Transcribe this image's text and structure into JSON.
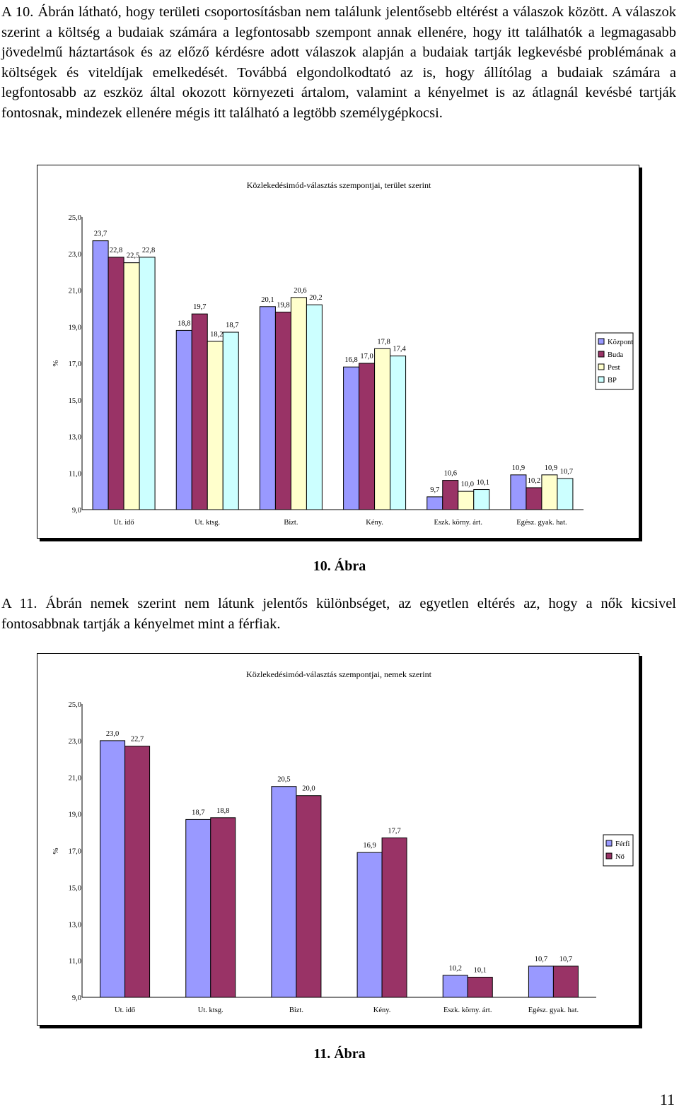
{
  "paragraphs": {
    "p1": "A 10. Ábrán látható, hogy területi csoportosításban nem találunk jelentősebb eltérést a válaszok között. A válaszok szerint a költség a budaiak számára a legfontosabb szempont annak ellenére, hogy itt találhatók a legmagasabb jövedelmű háztartások és az előző kérdésre adott válaszok alapján a budaiak tartják legkevésbé problémának a költségek és viteldíjak emelkedését. Továbbá elgondolkodtató az is, hogy állítólag a budaiak számára a legfontosabb az eszköz által okozott környezeti ártalom, valamint a kényelmet is az átlagnál kevésbé tartják fontosnak, mindezek ellenére mégis itt található a legtöbb személygépkocsi.",
    "p2": "A 11. Ábrán nemek szerint nem látunk jelentős különbséget, az egyetlen eltérés az, hogy a nők kicsivel fontosabbnak tartják a kényelmet mint a férfiak."
  },
  "captions": {
    "fig10": "10. Ábra",
    "fig11": "11. Ábra"
  },
  "page_number": "11",
  "chart_data": [
    {
      "type": "bar",
      "title": "Közlekedésimód-választás szempontjai, terület szerint",
      "xlabel": "",
      "ylabel": "%",
      "ylim": [
        9,
        25
      ],
      "yticks": [
        "9,0",
        "11,0",
        "13,0",
        "15,0",
        "17,0",
        "19,0",
        "21,0",
        "23,0",
        "25,0"
      ],
      "categories": [
        "Ut. idő",
        "Ut. ktsg.",
        "Bizt.",
        "Kény.",
        "Eszk. körny. árt.",
        "Egész. gyak. hat."
      ],
      "series": [
        {
          "name": "Központ",
          "color": "#9999ff",
          "values": [
            23.7,
            18.8,
            20.1,
            16.8,
            9.7,
            10.9
          ],
          "labels": [
            "23,7",
            "18,8",
            "20,1",
            "16,8",
            "9,7",
            "10,9"
          ]
        },
        {
          "name": "Buda",
          "color": "#993366",
          "values": [
            22.8,
            19.7,
            19.8,
            17.0,
            10.6,
            10.2
          ],
          "labels": [
            "22,8",
            "19,7",
            "19,8",
            "17,0",
            "10,6",
            "10,2"
          ]
        },
        {
          "name": "Pest",
          "color": "#ffffcc",
          "values": [
            22.5,
            18.2,
            20.6,
            17.8,
            10.0,
            10.9
          ],
          "labels": [
            "22,5",
            "18,2",
            "20,6",
            "17,8",
            "10,0",
            "10,9"
          ]
        },
        {
          "name": "BP",
          "color": "#ccffff",
          "values": [
            22.8,
            18.7,
            20.2,
            17.4,
            10.1,
            10.7
          ],
          "labels": [
            "22,8",
            "18,7",
            "20,2",
            "17,4",
            "10,1",
            "10,7"
          ]
        }
      ],
      "legend": "right",
      "grid": false
    },
    {
      "type": "bar",
      "title": "Közlekedésimód-választás szempontjai, nemek szerint",
      "xlabel": "",
      "ylabel": "%",
      "ylim": [
        9,
        25
      ],
      "yticks": [
        "9,0",
        "11,0",
        "13,0",
        "15,0",
        "17,0",
        "19,0",
        "21,0",
        "23,0",
        "25,0"
      ],
      "categories": [
        "Ut. idő",
        "Ut. ktsg.",
        "Bizt.",
        "Kény.",
        "Eszk. körny. árt.",
        "Egész. gyak. hat."
      ],
      "series": [
        {
          "name": "Férfi",
          "color": "#9999ff",
          "values": [
            23.0,
            18.7,
            20.5,
            16.9,
            10.2,
            10.7
          ],
          "labels": [
            "23,0",
            "18,7",
            "20,5",
            "16,9",
            "10,2",
            "10,7"
          ]
        },
        {
          "name": "Nő",
          "color": "#993366",
          "values": [
            22.7,
            18.8,
            20.0,
            17.7,
            10.1,
            10.7
          ],
          "labels": [
            "22,7",
            "18,8",
            "20,0",
            "17,7",
            "10,1",
            "10,7"
          ]
        }
      ],
      "legend": "right",
      "grid": false
    }
  ]
}
